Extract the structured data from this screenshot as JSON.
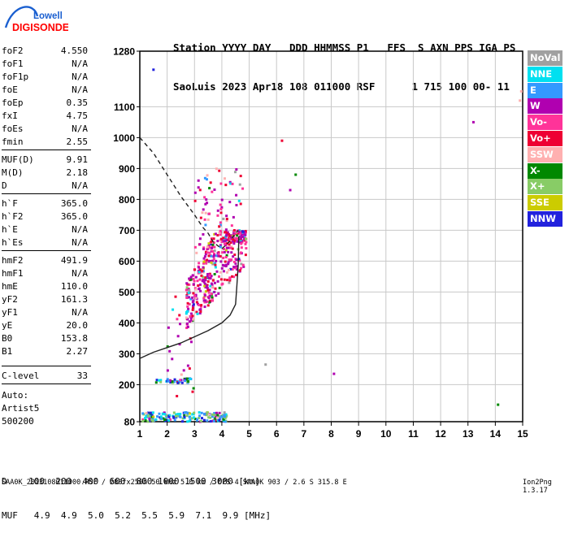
{
  "logo": {
    "line1": "Lowell",
    "line2": "DIGISONDE"
  },
  "header": {
    "labels": [
      "Station",
      "YYYY",
      "DAY",
      "DDD",
      "HHMMSS",
      "P1",
      "FFS",
      "S",
      "AXN",
      "PPS",
      "IGA",
      "PS"
    ],
    "line1": "Station YYYY DAY   DDD HHMMSS P1   FFS  S AXN PPS IGA PS",
    "line2": "SaoLuis 2023 Apr18 108 011000 RSF      1 715 100 00- 11"
  },
  "params": [
    {
      "name": "foF2",
      "value": "4.550"
    },
    {
      "name": "foF1",
      "value": "N/A"
    },
    {
      "name": "foF1p",
      "value": "N/A"
    },
    {
      "name": "foE",
      "value": "N/A"
    },
    {
      "name": "foEp",
      "value": "0.35"
    },
    {
      "name": "fxI",
      "value": "4.75"
    },
    {
      "name": "foEs",
      "value": "N/A"
    },
    {
      "name": "fmin",
      "value": "2.55"
    },
    {
      "name": "MUF(D)",
      "value": "9.91"
    },
    {
      "name": "M(D)",
      "value": "2.18"
    },
    {
      "name": "D",
      "value": "N/A"
    },
    {
      "name": "h`F",
      "value": "365.0"
    },
    {
      "name": "h`F2",
      "value": "365.0"
    },
    {
      "name": "h`E",
      "value": "N/A"
    },
    {
      "name": "h`Es",
      "value": "N/A"
    },
    {
      "name": "hmF2",
      "value": "491.9"
    },
    {
      "name": "hmF1",
      "value": "N/A"
    },
    {
      "name": "hmE",
      "value": "110.0"
    },
    {
      "name": "yF2",
      "value": "161.3"
    },
    {
      "name": "yF1",
      "value": "N/A"
    },
    {
      "name": "yE",
      "value": "20.0"
    },
    {
      "name": "B0",
      "value": "153.8"
    },
    {
      "name": "B1",
      "value": "2.27"
    },
    {
      "name": "C-level",
      "value": "33"
    }
  ],
  "auto": {
    "line1": "Auto:",
    "line2": "Artist5",
    "line3": "500200"
  },
  "legend": [
    {
      "label": "NoVal",
      "color": "#a0a0a0"
    },
    {
      "label": "NNE",
      "color": "#00e0f0"
    },
    {
      "label": "E",
      "color": "#3399ff"
    },
    {
      "label": "W",
      "color": "#b000b0"
    },
    {
      "label": "Vo-",
      "color": "#ff3399"
    },
    {
      "label": "Vo+",
      "color": "#ee0033"
    },
    {
      "label": "SSW",
      "color": "#ffb0b0"
    },
    {
      "label": "X-",
      "color": "#008800"
    },
    {
      "label": "X+",
      "color": "#88cc66"
    },
    {
      "label": "SSE",
      "color": "#cccc00"
    },
    {
      "label": "NNW",
      "color": "#2222dd"
    }
  ],
  "footer": {
    "line1": "D    100  200  400  600  800 1000 1500 3000 [km]",
    "line2": "MUF   4.9  4.9  5.0  5.2  5.5  5.9  7.1  9.9 [MHz]"
  },
  "bottom_line": "SAA0K_2023108011000.RSF / 280fx256h 50 kHz 5.0 km / DPS-4 SAA0K 903 / 2.6 S 315.8 E",
  "version": "Ion2Png 1.3.17",
  "chart_data": {
    "type": "scatter",
    "xlim": [
      1,
      15
    ],
    "ylim": [
      80,
      1280
    ],
    "x_ticks": [
      1,
      2,
      3,
      4,
      5,
      6,
      7,
      8,
      9,
      10,
      11,
      12,
      13,
      14,
      15
    ],
    "y_ticks": [
      80,
      200,
      300,
      400,
      500,
      600,
      700,
      800,
      900,
      1000,
      1100,
      1280
    ],
    "grid": true,
    "trace_solid": [
      [
        1.0,
        285
      ],
      [
        1.5,
        305
      ],
      [
        2.0,
        320
      ],
      [
        2.5,
        335
      ],
      [
        3.0,
        355
      ],
      [
        3.5,
        375
      ],
      [
        4.0,
        400
      ],
      [
        4.3,
        425
      ],
      [
        4.5,
        460
      ],
      [
        4.55,
        520
      ],
      [
        4.6,
        590
      ],
      [
        4.62,
        680
      ]
    ],
    "trace_dashed": [
      [
        1.0,
        1000
      ],
      [
        1.5,
        950
      ],
      [
        2.0,
        880
      ],
      [
        2.5,
        810
      ],
      [
        3.0,
        750
      ],
      [
        3.3,
        710
      ],
      [
        3.5,
        690
      ],
      [
        3.7,
        660
      ],
      [
        4.0,
        640
      ],
      [
        4.3,
        665
      ],
      [
        4.5,
        690
      ],
      [
        4.6,
        700
      ]
    ],
    "clusters": [
      {
        "name": "F-trace",
        "x": [
          2.7,
          4.9
        ],
        "y": [
          380,
          700
        ],
        "n": 420
      },
      {
        "name": "upper",
        "x": [
          3.0,
          4.8
        ],
        "y": [
          620,
          900
        ],
        "n": 90
      },
      {
        "name": "E-low",
        "x": [
          1.1,
          4.2
        ],
        "y": [
          80,
          110
        ],
        "n": 160
      },
      {
        "name": "low-band",
        "x": [
          1.5,
          2.9
        ],
        "y": [
          205,
          220
        ],
        "n": 40
      },
      {
        "name": "sporadic",
        "x": [
          2.0,
          3.0
        ],
        "y": [
          150,
          500
        ],
        "n": 25
      }
    ]
  }
}
